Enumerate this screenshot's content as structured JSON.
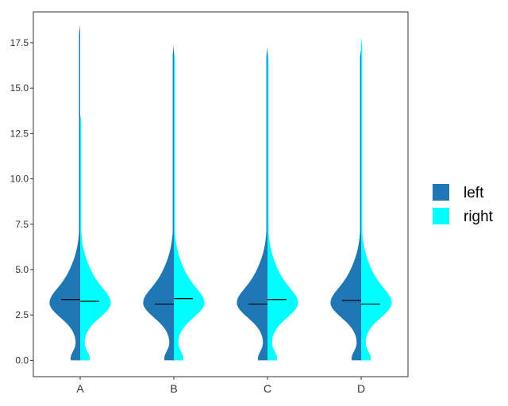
{
  "chart_data": {
    "type": "violin",
    "title": "",
    "xlabel": "",
    "ylabel": "",
    "categories": [
      "A",
      "B",
      "C",
      "D"
    ],
    "ylim": [
      -0.9,
      19.2
    ],
    "yticks": [
      0.0,
      2.5,
      5.0,
      7.5,
      10.0,
      12.5,
      15.0,
      17.5
    ],
    "ytick_labels": [
      "0.0",
      "2.5",
      "5.0",
      "7.5",
      "10.0",
      "12.5",
      "15.0",
      "17.5"
    ],
    "grid": false,
    "legend": {
      "position": "right"
    },
    "series": [
      {
        "name": "left",
        "color": "#1f77b4",
        "side": "left",
        "median": [
          3.35,
          3.1,
          3.1,
          3.3
        ],
        "max": [
          18.4,
          17.3,
          17.2,
          17.1
        ]
      },
      {
        "name": "right",
        "color": "#00ffff",
        "side": "right",
        "median": [
          3.25,
          3.4,
          3.35,
          3.1
        ],
        "max": [
          13.5,
          17.0,
          17.0,
          17.7
        ]
      }
    ]
  }
}
